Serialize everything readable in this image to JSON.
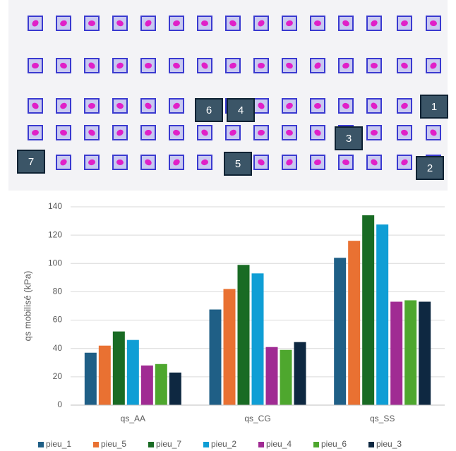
{
  "pile_labels": [
    "1",
    "2",
    "3",
    "4",
    "5",
    "6",
    "7"
  ],
  "chart_data": {
    "type": "bar",
    "y_label": "qs mobilisé (kPa)",
    "categories": [
      "qs_AA",
      "qs_CG",
      "qs_SS"
    ],
    "series": [
      {
        "name": "pieu_1",
        "color": "#1f5f86",
        "values": [
          37,
          67.5,
          104
        ]
      },
      {
        "name": "pieu_5",
        "color": "#e97132",
        "values": [
          42,
          82,
          116
        ]
      },
      {
        "name": "pieu_7",
        "color": "#196b24",
        "values": [
          52,
          99,
          134
        ]
      },
      {
        "name": "pieu_2",
        "color": "#0f9ed5",
        "values": [
          46,
          93,
          127.5
        ]
      },
      {
        "name": "pieu_4",
        "color": "#a02b93",
        "values": [
          28,
          41,
          73
        ]
      },
      {
        "name": "pieu_6",
        "color": "#4ea72e",
        "values": [
          29,
          39,
          74
        ]
      },
      {
        "name": "pieu_3",
        "color": "#0e2841",
        "values": [
          23,
          44.5,
          73
        ]
      }
    ],
    "ylim": [
      0,
      140
    ],
    "yticks": [
      0,
      20,
      40,
      60,
      80,
      100,
      120,
      140
    ],
    "grid": true,
    "legend": "bottom"
  }
}
